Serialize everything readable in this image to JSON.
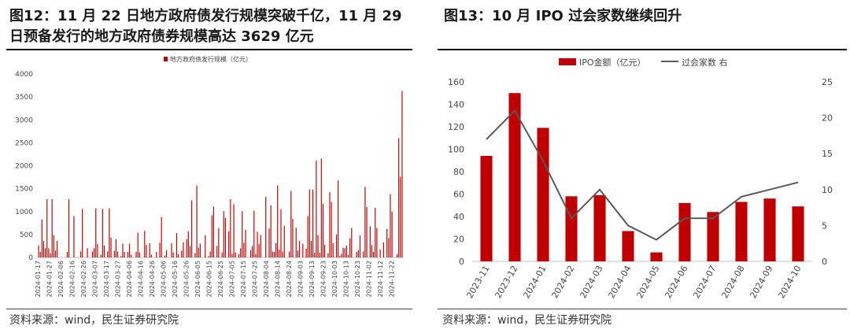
{
  "charts": {
    "left": {
      "title": "图12：11 月 22 日地方政府债发行规模突破千亿，11 月 29 日预备发行的地方政府债券规模高达 3629 亿元",
      "source": "资料来源：wind，民生证券研究院"
    },
    "right": {
      "title": "图13：10 月 IPO 过会家数继续回升",
      "source": "资料来源：wind，民生证券研究院"
    }
  },
  "colors": {
    "bar": "#c00000",
    "line": "#595959",
    "axis": "#bfbfbf"
  },
  "chart_data": [
    {
      "type": "bar",
      "legend": [
        "地方政府债发行规模（亿元）"
      ],
      "legend_position": "top",
      "ylim": [
        0,
        4000
      ],
      "yticks": [
        "0",
        "500",
        "1000",
        "1500",
        "2000",
        "2500",
        "3000",
        "3500",
        "4000"
      ],
      "x_ticklabels": [
        "2024-01-17",
        "2024-01-27",
        "2024-02-06",
        "2024-02-16",
        "2024-02-26",
        "2024-03-07",
        "2024-03-17",
        "2024-03-27",
        "2024-04-06",
        "2024-04-16",
        "2024-04-26",
        "2024-05-06",
        "2024-05-16",
        "2024-05-26",
        "2024-06-05",
        "2024-06-15",
        "2024-06-25",
        "2024-07-05",
        "2024-07-15",
        "2024-07-25",
        "2024-08-04",
        "2024-08-14",
        "2024-08-24",
        "2024-09-03",
        "2024-09-13",
        "2024-09-23",
        "2024-10-03",
        "2024-10-13",
        "2024-10-23",
        "2024-11-02",
        "2024-11-12",
        "2024-11-22"
      ],
      "series": [
        {
          "name": "地方政府债发行规模（亿元）",
          "values": [
            260,
            120,
            830,
            360,
            200,
            1270,
            200,
            90,
            1270,
            480,
            150,
            360,
            0,
            0,
            0,
            0,
            0,
            120,
            1270,
            0,
            0,
            900,
            0,
            0,
            0,
            130,
            1060,
            0,
            0,
            200,
            0,
            0,
            130,
            200,
            1070,
            290,
            0,
            60,
            1060,
            260,
            0,
            130,
            1070,
            430,
            0,
            140,
            400,
            130,
            0,
            30,
            300,
            120,
            0,
            120,
            300,
            60,
            0,
            0,
            120,
            540,
            110,
            0,
            0,
            580,
            270,
            0,
            310,
            60,
            0,
            0,
            120,
            0,
            320,
            880,
            0,
            40,
            160,
            0,
            0,
            310,
            110,
            0,
            530,
            70,
            0,
            150,
            330,
            0,
            400,
            570,
            250,
            1240,
            0,
            90,
            1570,
            210,
            300,
            0,
            0,
            480,
            0,
            30,
            130,
            920,
            1110,
            0,
            250,
            640,
            0,
            110,
            1010,
            860,
            0,
            570,
            1270,
            80,
            1160,
            110,
            0,
            70,
            200,
            1010,
            320,
            600,
            0,
            0,
            160,
            250,
            1020,
            70,
            560,
            290,
            490,
            0,
            0,
            1320,
            0,
            630,
            1140,
            130,
            120,
            310,
            1570,
            170,
            1050,
            130,
            690,
            0,
            0,
            130,
            1450,
            840,
            0,
            650,
            150,
            360,
            0,
            300,
            0,
            190,
            900,
            1480,
            360,
            1480,
            100,
            2110,
            480,
            100,
            2160,
            1170,
            280,
            0,
            90,
            1420,
            1210,
            310,
            0,
            500,
            1680,
            30,
            80,
            210,
            200,
            260,
            50,
            420,
            640,
            0,
            0,
            120,
            160,
            480,
            0,
            130,
            1540,
            1100,
            0,
            680,
            270,
            120,
            1080,
            640,
            0,
            170,
            0,
            330,
            0,
            620,
            420,
            1380,
            1000,
            0,
            0,
            70,
            2600,
            1760,
            3629
          ]
        }
      ]
    },
    {
      "type": "bar",
      "legend": [
        "IPO金额（亿元）",
        "过会家数 右"
      ],
      "legend_position": "top",
      "categories": [
        "2023-11",
        "2023-12",
        "2024-01",
        "2024-02",
        "2024-03",
        "2024-04",
        "2024-05",
        "2024-06",
        "2024-07",
        "2024-08",
        "2024-09",
        "2024-10"
      ],
      "ylim": [
        0,
        160
      ],
      "yticks": [
        "0",
        "20",
        "40",
        "60",
        "80",
        "100",
        "120",
        "140",
        "160"
      ],
      "y2lim": [
        0,
        25
      ],
      "y2ticks": [
        "0",
        "5",
        "10",
        "15",
        "20",
        "25"
      ],
      "series": [
        {
          "name": "IPO金额（亿元）",
          "type": "bar",
          "axis": "left",
          "values": [
            94,
            150,
            119,
            58,
            59,
            27,
            8,
            52,
            44,
            53,
            56,
            49
          ]
        },
        {
          "name": "过会家数 右",
          "type": "line",
          "axis": "right",
          "values": [
            17,
            21,
            14,
            6,
            10,
            5,
            3,
            6,
            6,
            9,
            10,
            11
          ]
        }
      ]
    }
  ]
}
